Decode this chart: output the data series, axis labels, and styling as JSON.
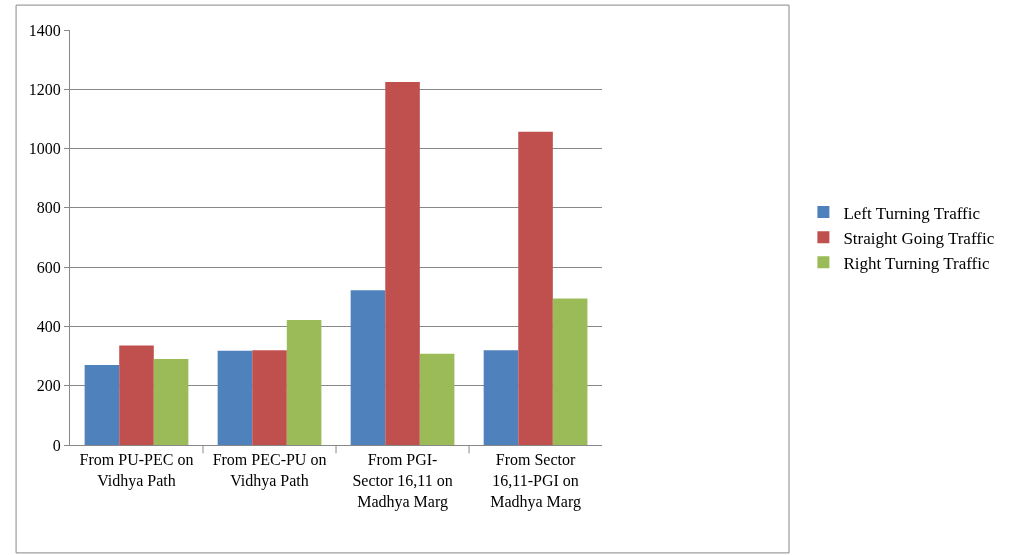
{
  "chart_data": {
    "type": "bar",
    "categories": [
      "From PU-PEC on\nVidhya Path",
      "From PEC-PU on\nVidhya Path",
      "From PGI-\nSector 16,11 on\nMadhya Marg",
      "From Sector\n16,11-PGI on\nMadhya Marg"
    ],
    "series": [
      {
        "name": "Left Turning Traffic",
        "color": "#4f81bd",
        "values": [
          270,
          318,
          522,
          320
        ]
      },
      {
        "name": "Straight Going Traffic",
        "color": "#c0504d",
        "values": [
          336,
          320,
          1225,
          1057
        ]
      },
      {
        "name": "Right Turning Traffic",
        "color": "#9bbb59",
        "values": [
          290,
          422,
          308,
          494
        ]
      }
    ],
    "ylim": [
      0,
      1400
    ],
    "yticks": [
      0,
      200,
      400,
      600,
      800,
      1000,
      1200,
      1400
    ],
    "grid": "y",
    "legend": "right"
  }
}
